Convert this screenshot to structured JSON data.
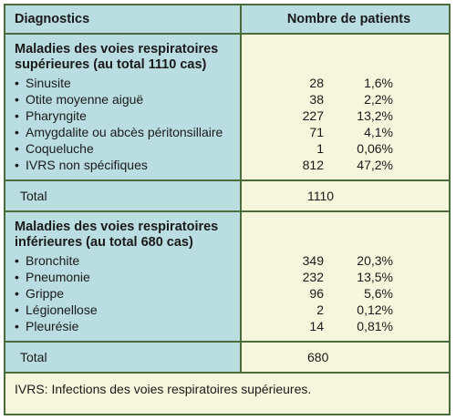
{
  "header": {
    "col_diagnostics": "Diagnostics",
    "col_patients": "Nombre de patients"
  },
  "upper": {
    "title_line1": "Maladies des voies respiratoires",
    "title_line2": "supérieures (au total 1110 cas)",
    "items": [
      {
        "label": "Sinusite",
        "count": "28",
        "pct": "1,6%"
      },
      {
        "label": "Otite moyenne aiguë",
        "count": "38",
        "pct": "2,2%"
      },
      {
        "label": "Pharyngite",
        "count": "227",
        "pct": "13,2%"
      },
      {
        "label": "Amygdalite ou abcès péritonsillaire",
        "count": "71",
        "pct": "4,1%"
      },
      {
        "label": "Coqueluche",
        "count": "1",
        "pct": "0,06%"
      },
      {
        "label": "IVRS non spécifiques",
        "count": "812",
        "pct": "47,2%"
      }
    ],
    "total_label": "Total",
    "total_value": "1110"
  },
  "lower": {
    "title_line1": "Maladies des voies respiratoires",
    "title_line2": "inférieures (au total 680 cas)",
    "items": [
      {
        "label": "Bronchite",
        "count": "349",
        "pct": "20,3%"
      },
      {
        "label": "Pneumonie",
        "count": "232",
        "pct": "13,5%"
      },
      {
        "label": "Grippe",
        "count": "96",
        "pct": "5,6%"
      },
      {
        "label": "Légionellose",
        "count": "2",
        "pct": "0,12%"
      },
      {
        "label": "Pleurésie",
        "count": "14",
        "pct": "0,81%"
      }
    ],
    "total_label": "Total",
    "total_value": "680"
  },
  "footnote": "IVRS: Infections des voies respiratoires supérieures.",
  "bullet": "•",
  "colors": {
    "header_bg": "#b9dde0",
    "body_bg": "#f6f6dc",
    "border": "#4b6b3a"
  }
}
